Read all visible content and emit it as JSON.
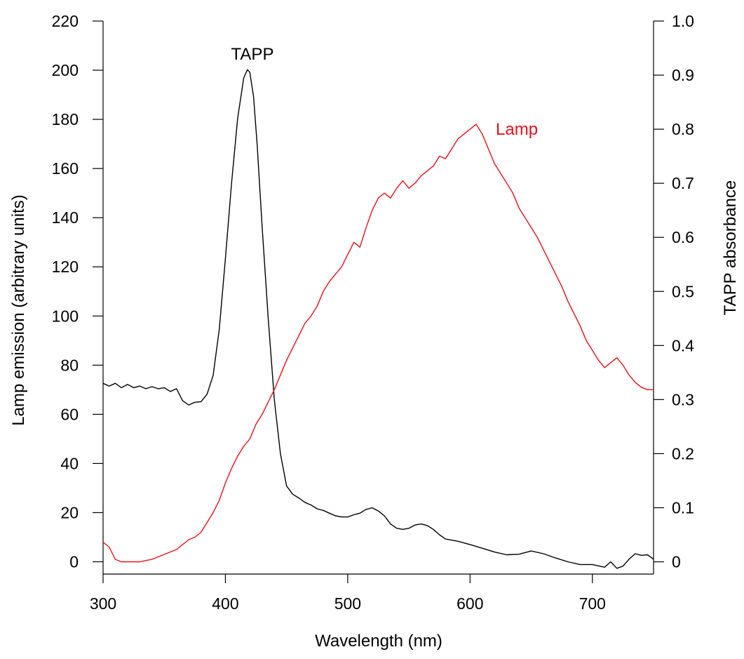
{
  "chart_data": {
    "type": "line",
    "xlabel": "Wavelength (nm)",
    "ylabel_left": "Lamp emission (arbitrary units)",
    "ylabel_right": "TAPP absorbance",
    "xlim": [
      300,
      750
    ],
    "ylim_left": [
      -5,
      220
    ],
    "ylim_right": [
      -0.0227,
      1.0
    ],
    "x_ticks": [
      "300",
      "400",
      "500",
      "600",
      "700"
    ],
    "y_left_ticks": [
      "0",
      "20",
      "40",
      "60",
      "80",
      "100",
      "120",
      "140",
      "160",
      "180",
      "200",
      "220"
    ],
    "y_right_ticks": [
      "0",
      "0.1",
      "0.2",
      "0.3",
      "0.4",
      "0.5",
      "0.6",
      "0.7",
      "0.8",
      "0.9",
      "1.0"
    ],
    "grid": false,
    "colors": {
      "axis": "#000000",
      "lamp": "#e8101a",
      "tapp": "#000000"
    },
    "series": [
      {
        "name": "TAPP",
        "axis": "right",
        "color": "#000000",
        "x": [
          300,
          305,
          310,
          315,
          320,
          325,
          330,
          335,
          340,
          345,
          350,
          355,
          360,
          365,
          370,
          375,
          380,
          385,
          390,
          395,
          400,
          405,
          410,
          415,
          418,
          420,
          423,
          426,
          430,
          435,
          440,
          445,
          450,
          455,
          460,
          465,
          470,
          475,
          480,
          485,
          490,
          495,
          500,
          505,
          510,
          515,
          520,
          525,
          530,
          535,
          540,
          545,
          550,
          555,
          560,
          565,
          570,
          575,
          580,
          590,
          600,
          610,
          620,
          630,
          640,
          650,
          660,
          670,
          680,
          690,
          700,
          710,
          715,
          720,
          725,
          730,
          735,
          740,
          745,
          750
        ],
        "y": [
          0.33,
          0.325,
          0.33,
          0.322,
          0.328,
          0.322,
          0.325,
          0.32,
          0.324,
          0.32,
          0.322,
          0.315,
          0.32,
          0.298,
          0.29,
          0.295,
          0.296,
          0.31,
          0.345,
          0.43,
          0.56,
          0.7,
          0.82,
          0.895,
          0.91,
          0.905,
          0.86,
          0.77,
          0.62,
          0.45,
          0.3,
          0.2,
          0.14,
          0.125,
          0.118,
          0.11,
          0.105,
          0.098,
          0.095,
          0.09,
          0.085,
          0.083,
          0.083,
          0.087,
          0.09,
          0.097,
          0.1,
          0.094,
          0.085,
          0.07,
          0.062,
          0.06,
          0.062,
          0.068,
          0.07,
          0.067,
          0.06,
          0.05,
          0.042,
          0.038,
          0.032,
          0.025,
          0.018,
          0.013,
          0.014,
          0.02,
          0.015,
          0.007,
          0.0,
          -0.005,
          -0.005,
          -0.01,
          0.0,
          -0.012,
          -0.008,
          0.005,
          0.015,
          0.012,
          0.013,
          0.005
        ]
      },
      {
        "name": "Lamp",
        "axis": "left",
        "color": "#e8101a",
        "x": [
          300,
          305,
          310,
          315,
          320,
          325,
          330,
          335,
          340,
          345,
          350,
          355,
          360,
          365,
          370,
          375,
          380,
          385,
          390,
          395,
          400,
          405,
          410,
          415,
          420,
          425,
          430,
          435,
          440,
          445,
          450,
          455,
          460,
          465,
          470,
          475,
          480,
          485,
          490,
          495,
          500,
          505,
          510,
          515,
          520,
          525,
          530,
          535,
          540,
          545,
          550,
          555,
          560,
          565,
          570,
          575,
          580,
          585,
          590,
          595,
          600,
          605,
          610,
          615,
          620,
          625,
          630,
          635,
          640,
          645,
          650,
          655,
          660,
          665,
          670,
          675,
          680,
          685,
          690,
          695,
          700,
          705,
          710,
          715,
          720,
          725,
          730,
          735,
          740,
          745,
          750
        ],
        "y": [
          8,
          6,
          1,
          0,
          0,
          0,
          0,
          0.5,
          1,
          2,
          3,
          4,
          5,
          7,
          9,
          10,
          12,
          16,
          20,
          25,
          32,
          38,
          43,
          47,
          50,
          56,
          60,
          65,
          70,
          76,
          82,
          87,
          92,
          97,
          100,
          104,
          110,
          114,
          117,
          120,
          125,
          130,
          128,
          136,
          143,
          148,
          150,
          148,
          152,
          155,
          152,
          154,
          157,
          159,
          161,
          165,
          164,
          168,
          172,
          174,
          176,
          178,
          174,
          168,
          162,
          158,
          154,
          150,
          144,
          140,
          136,
          132,
          127,
          122,
          117,
          112,
          106,
          101,
          96,
          90,
          86,
          82,
          79,
          81,
          83,
          80,
          76,
          73,
          71,
          70,
          70
        ]
      }
    ]
  }
}
